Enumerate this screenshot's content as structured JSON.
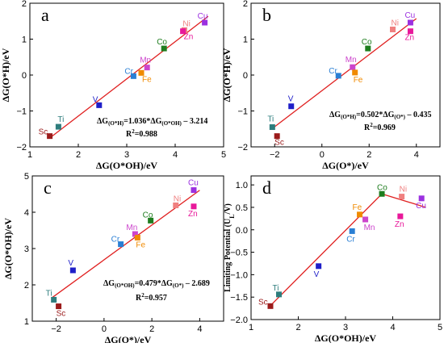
{
  "chart_data": [
    {
      "type": "scatter",
      "panel_label": "a",
      "xlabel": "ΔG(O*OH)/eV",
      "ylabel": "ΔG(O*H)/eV",
      "xlim": [
        1,
        5
      ],
      "ylim": [
        -2,
        2
      ],
      "xticks": [
        1,
        2,
        3,
        4,
        5
      ],
      "yticks": [
        -2,
        -1,
        0,
        1,
        2
      ],
      "equation": {
        "lhs": "ΔG",
        "lhs_sub": "(O*H)",
        "mid": "=1.036*ΔG",
        "mid_sub": "(O*OH)",
        "rhs": " – 3.214"
      },
      "r2": {
        "text": "R",
        "sup": "2",
        "value": "=0.988"
      },
      "fit": {
        "x": [
          1.4,
          4.68
        ],
        "y": [
          -1.764,
          1.634
        ]
      },
      "points": [
        {
          "label": "Sc",
          "x": 1.41,
          "y": -1.7,
          "color": "#9b1b1b",
          "label_color": "#9b1b1b"
        },
        {
          "label": "Ti",
          "x": 1.59,
          "y": -1.44,
          "color": "#2e7d7d",
          "label_color": "#2e7d7d"
        },
        {
          "label": "V",
          "x": 2.43,
          "y": -0.84,
          "color": "#1f1fc8",
          "label_color": "#1f1fc8"
        },
        {
          "label": "Cr",
          "x": 3.14,
          "y": -0.03,
          "color": "#2a7fd4",
          "label_color": "#2a7fd4"
        },
        {
          "label": "Fe",
          "x": 3.3,
          "y": 0.06,
          "color": "#f08a00",
          "label_color": "#f08a00"
        },
        {
          "label": "Mn",
          "x": 3.42,
          "y": 0.21,
          "color": "#cc44cc",
          "label_color": "#cc44cc"
        },
        {
          "label": "Co",
          "x": 3.77,
          "y": 0.74,
          "color": "#1e7d1e",
          "label_color": "#1e7d1e"
        },
        {
          "label": "Ni",
          "x": 4.19,
          "y": 1.25,
          "color": "#f08080",
          "label_color": "#f08080"
        },
        {
          "label": "Zn",
          "x": 4.16,
          "y": 1.22,
          "color": "#e8189a",
          "label_color": "#e8189a"
        },
        {
          "label": "Cu",
          "x": 4.61,
          "y": 1.46,
          "color": "#9b30e0",
          "label_color": "#9b30e0"
        }
      ]
    },
    {
      "type": "scatter",
      "panel_label": "b",
      "xlabel": "ΔG(O*)/eV",
      "ylabel": "ΔG(O*H)/eV",
      "xlim": [
        -3,
        5
      ],
      "ylim": [
        -2,
        2
      ],
      "xticks": [
        -2,
        0,
        2,
        4
      ],
      "yticks": [
        -2,
        -1,
        0,
        1,
        2
      ],
      "equation": {
        "lhs": "ΔG",
        "lhs_sub": "(O*H)",
        "mid": "=0.502*ΔG",
        "mid_sub": "(O*)",
        "rhs": " – 0.435"
      },
      "r2": {
        "text": "R",
        "sup": "2",
        "value": "=0.969"
      },
      "fit": {
        "x": [
          -2.1,
          4.0
        ],
        "y": [
          -1.489,
          1.573
        ]
      },
      "points": [
        {
          "label": "Sc",
          "x": -1.9,
          "y": -1.7,
          "color": "#9b1b1b",
          "label_color": "#9b1b1b"
        },
        {
          "label": "Ti",
          "x": -2.1,
          "y": -1.45,
          "color": "#2e7d7d",
          "label_color": "#2e7d7d"
        },
        {
          "label": "V",
          "x": -1.3,
          "y": -0.87,
          "color": "#1f1fc8",
          "label_color": "#1f1fc8"
        },
        {
          "label": "Cr",
          "x": 0.7,
          "y": -0.02,
          "color": "#2a7fd4",
          "label_color": "#2a7fd4"
        },
        {
          "label": "Mn",
          "x": 1.3,
          "y": 0.22,
          "color": "#cc44cc",
          "label_color": "#cc44cc"
        },
        {
          "label": "Fe",
          "x": 1.4,
          "y": 0.07,
          "color": "#f08a00",
          "label_color": "#f08a00"
        },
        {
          "label": "Co",
          "x": 1.95,
          "y": 0.74,
          "color": "#1e7d1e",
          "label_color": "#1e7d1e"
        },
        {
          "label": "Ni",
          "x": 3.0,
          "y": 1.27,
          "color": "#f08080",
          "label_color": "#f08080"
        },
        {
          "label": "Cu",
          "x": 3.75,
          "y": 1.46,
          "color": "#9b30e0",
          "label_color": "#9b30e0"
        },
        {
          "label": "Zn",
          "x": 3.75,
          "y": 1.22,
          "color": "#e8189a",
          "label_color": "#e8189a"
        }
      ]
    },
    {
      "type": "scatter",
      "panel_label": "c",
      "xlabel": "ΔG(O*)/eV",
      "ylabel": "ΔG(O*OH)/eV",
      "xlim": [
        -3,
        5
      ],
      "ylim": [
        1,
        5
      ],
      "xticks": [
        -2,
        0,
        2,
        4
      ],
      "yticks": [
        1,
        2,
        3,
        4,
        5
      ],
      "equation": {
        "lhs": "ΔG",
        "lhs_sub": "(O*OH)",
        "mid": "=0.479*ΔG",
        "mid_sub": "(O*)",
        "rhs": " – 2.689"
      },
      "r2": {
        "text": "R",
        "sup": "2",
        "value": "=0.957"
      },
      "fit": {
        "x": [
          -2.2,
          4.0
        ],
        "y": [
          1.635,
          4.605
        ]
      },
      "points": [
        {
          "label": "Ti",
          "x": -2.1,
          "y": 1.59,
          "color": "#2e7d7d",
          "label_color": "#2e7d7d"
        },
        {
          "label": "Sc",
          "x": -1.9,
          "y": 1.41,
          "color": "#9b1b1b",
          "label_color": "#9b1b1b"
        },
        {
          "label": "V",
          "x": -1.3,
          "y": 2.4,
          "color": "#1f1fc8",
          "label_color": "#1f1fc8"
        },
        {
          "label": "Cr",
          "x": 0.7,
          "y": 3.12,
          "color": "#2a7fd4",
          "label_color": "#2a7fd4"
        },
        {
          "label": "Mn",
          "x": 1.3,
          "y": 3.4,
          "color": "#cc44cc",
          "label_color": "#cc44cc"
        },
        {
          "label": "Fe",
          "x": 1.4,
          "y": 3.3,
          "color": "#f08a00",
          "label_color": "#f08a00"
        },
        {
          "label": "Co",
          "x": 1.95,
          "y": 3.77,
          "color": "#1e7d1e",
          "label_color": "#1e7d1e"
        },
        {
          "label": "Ni",
          "x": 3.0,
          "y": 4.19,
          "color": "#f08080",
          "label_color": "#f08080"
        },
        {
          "label": "Cu",
          "x": 3.75,
          "y": 4.61,
          "color": "#9b30e0",
          "label_color": "#9b30e0"
        },
        {
          "label": "Zn",
          "x": 3.75,
          "y": 4.16,
          "color": "#e8189a",
          "label_color": "#e8189a"
        }
      ]
    },
    {
      "type": "scatter",
      "panel_label": "d",
      "xlabel": "ΔG(O*OH)/eV",
      "ylabel": "Limiting Potential (U",
      "ylabel_sub": "L",
      "ylabel_end": "/V)",
      "xlim": [
        1,
        5
      ],
      "ylim": [
        -2.0,
        1.2
      ],
      "xticks": [
        1,
        2,
        3,
        4,
        5
      ],
      "yticks": [
        -2.0,
        -1.5,
        -1.0,
        -0.5,
        0.0,
        0.5,
        1.0
      ],
      "ytick_labels": [
        "-2.0",
        "-1.5",
        "-1.0",
        "-0.5",
        "0.0",
        "0.5",
        "1.0"
      ],
      "volcano": {
        "x": [
          1.4,
          3.77,
          4.7
        ],
        "y": [
          -1.7,
          0.8,
          0.5
        ]
      },
      "points": [
        {
          "label": "Sc",
          "x": 1.41,
          "y": -1.7,
          "color": "#9b1b1b",
          "label_color": "#9b1b1b"
        },
        {
          "label": "Ti",
          "x": 1.59,
          "y": -1.44,
          "color": "#2e7d7d",
          "label_color": "#2e7d7d"
        },
        {
          "label": "V",
          "x": 2.43,
          "y": -0.81,
          "color": "#1f1fc8",
          "label_color": "#1f1fc8"
        },
        {
          "label": "Cr",
          "x": 3.14,
          "y": -0.03,
          "color": "#2a7fd4",
          "label_color": "#2a7fd4"
        },
        {
          "label": "Fe",
          "x": 3.3,
          "y": 0.34,
          "color": "#f08a00",
          "label_color": "#f08a00"
        },
        {
          "label": "Mn",
          "x": 3.42,
          "y": 0.23,
          "color": "#cc44cc",
          "label_color": "#cc44cc"
        },
        {
          "label": "Co",
          "x": 3.77,
          "y": 0.8,
          "color": "#1e7d1e",
          "label_color": "#1e7d1e"
        },
        {
          "label": "Ni",
          "x": 4.19,
          "y": 0.74,
          "color": "#f08080",
          "label_color": "#f08080"
        },
        {
          "label": "Zn",
          "x": 4.16,
          "y": 0.3,
          "color": "#e8189a",
          "label_color": "#e8189a"
        },
        {
          "label": "Cu",
          "x": 4.61,
          "y": 0.7,
          "color": "#9b30e0",
          "label_color": "#9b30e0"
        }
      ]
    }
  ]
}
